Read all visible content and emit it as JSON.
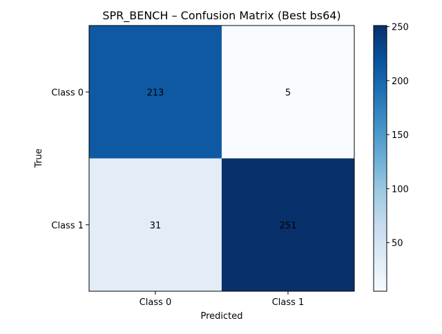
{
  "chart_data": {
    "type": "heatmap",
    "title": "SPR_BENCH – Confusion Matrix (Best bs64)",
    "xlabel": "Predicted",
    "ylabel": "True",
    "x_categories": [
      "Class 0",
      "Class 1"
    ],
    "y_categories": [
      "Class 0",
      "Class 1"
    ],
    "values": [
      [
        213,
        5
      ],
      [
        31,
        251
      ]
    ],
    "colormap": "Blues",
    "color_range": [
      5,
      251
    ],
    "colorbar_ticks": [
      50,
      100,
      150,
      200,
      250
    ],
    "colorbar_tick_labels": [
      "50",
      "100",
      "150",
      "200",
      "250"
    ]
  }
}
